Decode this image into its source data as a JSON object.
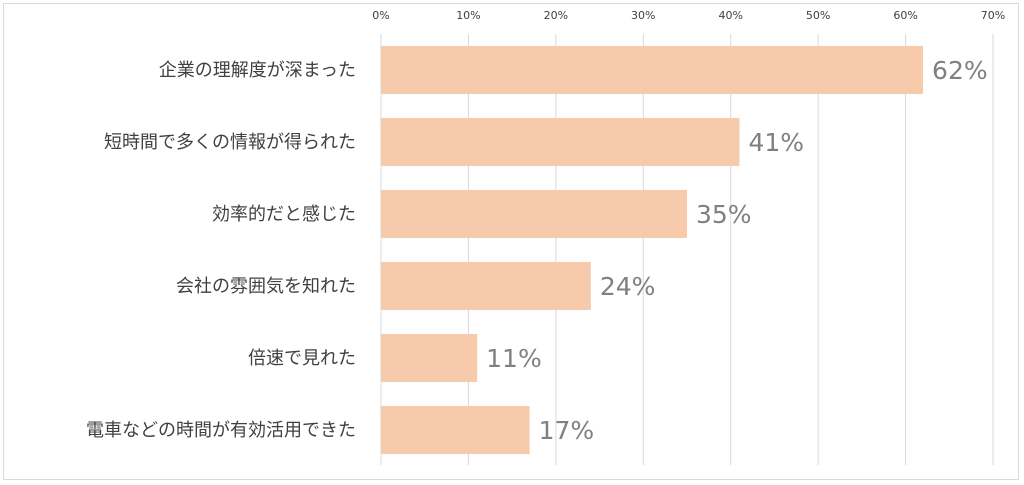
{
  "chart_data": {
    "type": "bar",
    "orientation": "horizontal",
    "categories": [
      "企業の理解度が深まった",
      "短時間で多くの情報が得られた",
      "効率的だと感じた",
      "会社の雰囲気を知れた",
      "倍速で見れた",
      "電車などの時間が有効活用できた"
    ],
    "values": [
      62,
      41,
      35,
      24,
      11,
      17
    ],
    "data_labels": [
      "62%",
      "41%",
      "35%",
      "24%",
      "11%",
      "17%"
    ],
    "x_ticks": [
      "0%",
      "10%",
      "20%",
      "30%",
      "40%",
      "50%",
      "60%",
      "70%"
    ],
    "xlim": [
      0,
      70
    ],
    "x_axis_position": "top",
    "grid": true,
    "legend": "none",
    "title": "",
    "xlabel": "",
    "ylabel": "",
    "colors": {
      "bar": "#f7caac",
      "gridline": "#d9d9d9",
      "tick_text": "#404040",
      "category_text": "#404040",
      "data_label_text": "#808080"
    }
  }
}
